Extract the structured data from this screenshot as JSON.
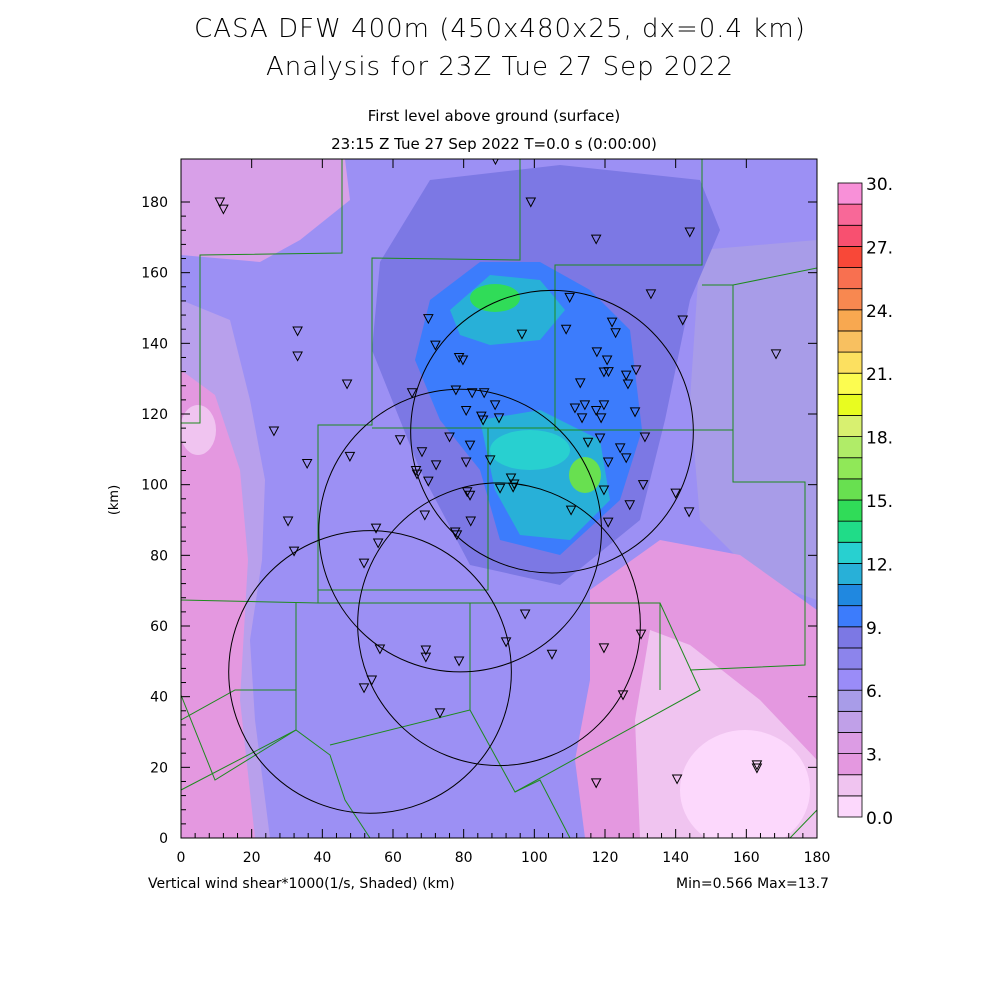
{
  "header": {
    "title_line1": "CASA DFW 400m (450x480x25, dx=0.4 km)",
    "title_line2": "Analysis for 23Z Tue 27 Sep 2022",
    "subtitle_line1": "First level above ground (surface)",
    "subtitle_line2": "23:15 Z Tue 27 Sep 2022    T=0.0 s (0:00:00)"
  },
  "footer": {
    "variable_label": "Vertical wind shear*1000(1/s, Shaded)  (km)",
    "minmax": "Min=0.566 Max=13.7"
  },
  "chart_data": {
    "type": "heatmap",
    "title": "CASA DFW 400m (450x480x25, dx=0.4 km)",
    "xlabel": "(km)",
    "ylabel": "(km)",
    "xlim": [
      0,
      180
    ],
    "ylim": [
      0,
      192
    ],
    "x_ticks": [
      "0",
      "20",
      "40",
      "60",
      "80",
      "100",
      "120",
      "140",
      "160",
      "180"
    ],
    "y_ticks": [
      "0",
      "20",
      "40",
      "60",
      "80",
      "100",
      "120",
      "140",
      "160",
      "180"
    ],
    "colorbar": {
      "range": [
        0,
        30
      ],
      "labels": [
        "0.0",
        "3.",
        "6.",
        "9.",
        "12.",
        "15.",
        "18.",
        "21.",
        "24.",
        "27.",
        "30."
      ],
      "colors": [
        "#fcd8fc",
        "#f0c4f0",
        "#e498e0",
        "#dc9ce4",
        "#c0a0e8",
        "#a89ce8",
        "#9a8cf8",
        "#8c84ec",
        "#7c78e4",
        "#3c7cfc",
        "#2088e0",
        "#28b0d8",
        "#28d0d0",
        "#20dc88",
        "#30dc58",
        "#68e050",
        "#90e858",
        "#b0ec68",
        "#d8f070",
        "#e8fc20",
        "#fcfc50",
        "#fce060",
        "#f8c060",
        "#f8a850",
        "#f88850",
        "#f87050",
        "#f84838",
        "#f85070",
        "#f86898",
        "#f890d8"
      ]
    },
    "range_rings_km": [
      {
        "x": 53.5,
        "y": 47,
        "r": 40
      },
      {
        "x": 79,
        "y": 87,
        "r": 40
      },
      {
        "x": 90,
        "y": 60.5,
        "r": 40
      },
      {
        "x": 105,
        "y": 115,
        "r": 40
      }
    ],
    "stations_km": [
      [
        11,
        180
      ],
      [
        12,
        178
      ],
      [
        99,
        180
      ],
      [
        89,
        192
      ],
      [
        117.5,
        169.5
      ],
      [
        144,
        171.5
      ],
      [
        133,
        154
      ],
      [
        110,
        153
      ],
      [
        142,
        146.6
      ],
      [
        168.4,
        137
      ],
      [
        33,
        143.5
      ],
      [
        33,
        136.4
      ],
      [
        70,
        147
      ],
      [
        96.5,
        142.6
      ],
      [
        109,
        144
      ],
      [
        122,
        146
      ],
      [
        123,
        143
      ],
      [
        47,
        128.5
      ],
      [
        72,
        139.5
      ],
      [
        65.4,
        126
      ],
      [
        78.7,
        136
      ],
      [
        79.8,
        135.3
      ],
      [
        85.8,
        126
      ],
      [
        77.8,
        126.8
      ],
      [
        82.4,
        126
      ],
      [
        80.7,
        121
      ],
      [
        88.9,
        122.6
      ],
      [
        85,
        119.4
      ],
      [
        90,
        118.9
      ],
      [
        85.5,
        118.3
      ],
      [
        113,
        128.8
      ],
      [
        117.7,
        137.6
      ],
      [
        119.7,
        131.9
      ],
      [
        121,
        132
      ],
      [
        126,
        131
      ],
      [
        128.8,
        132.5
      ],
      [
        120.6,
        135.3
      ],
      [
        126.5,
        128.5
      ],
      [
        114.3,
        122.6
      ],
      [
        117.5,
        121
      ],
      [
        118.9,
        118.9
      ],
      [
        119.7,
        122.6
      ],
      [
        111.5,
        121.7
      ],
      [
        113.5,
        118.9
      ],
      [
        128.5,
        120.6
      ],
      [
        62,
        112.7
      ],
      [
        76,
        113.5
      ],
      [
        81.8,
        111.2
      ],
      [
        68.2,
        109.3
      ],
      [
        87.5,
        107
      ],
      [
        66.5,
        104
      ],
      [
        72.2,
        105.6
      ],
      [
        66.8,
        103
      ],
      [
        70,
        101
      ],
      [
        80.7,
        106.4
      ],
      [
        26.3,
        115.2
      ],
      [
        35.7,
        106
      ],
      [
        47.8,
        108
      ],
      [
        118.6,
        113.2
      ],
      [
        124.3,
        110.4
      ],
      [
        126,
        107.6
      ],
      [
        115.2,
        112
      ],
      [
        120.9,
        106.4
      ],
      [
        131.3,
        113.5
      ],
      [
        93.4,
        101.9
      ],
      [
        94.3,
        100.2
      ],
      [
        94,
        99.3
      ],
      [
        81,
        98
      ],
      [
        90.3,
        99
      ],
      [
        81.8,
        97
      ],
      [
        69,
        91.4
      ],
      [
        82,
        89.7
      ],
      [
        77.6,
        86.6
      ],
      [
        78.1,
        85.8
      ],
      [
        30.3,
        89.7
      ],
      [
        32,
        81.2
      ],
      [
        55.2,
        87.7
      ],
      [
        55.8,
        83.5
      ],
      [
        51.8,
        77.8
      ],
      [
        119.7,
        98.5
      ],
      [
        127,
        94.3
      ],
      [
        130.8,
        100
      ],
      [
        140,
        97.6
      ],
      [
        143.8,
        92.3
      ],
      [
        120.9,
        89.4
      ],
      [
        110.4,
        92.8
      ],
      [
        97.4,
        63.4
      ],
      [
        92,
        55.5
      ],
      [
        105,
        52
      ],
      [
        119.7,
        53.8
      ],
      [
        130.2,
        57.7
      ],
      [
        125.1,
        40.5
      ],
      [
        69.3,
        53.2
      ],
      [
        69.3,
        51.2
      ],
      [
        78.7,
        50.1
      ],
      [
        56.3,
        53.5
      ],
      [
        54,
        44.7
      ],
      [
        51.8,
        42.5
      ],
      [
        73.3,
        35.4
      ],
      [
        117.5,
        15.6
      ],
      [
        140.4,
        16.7
      ],
      [
        163,
        20.7
      ],
      [
        163,
        19.8
      ]
    ]
  }
}
